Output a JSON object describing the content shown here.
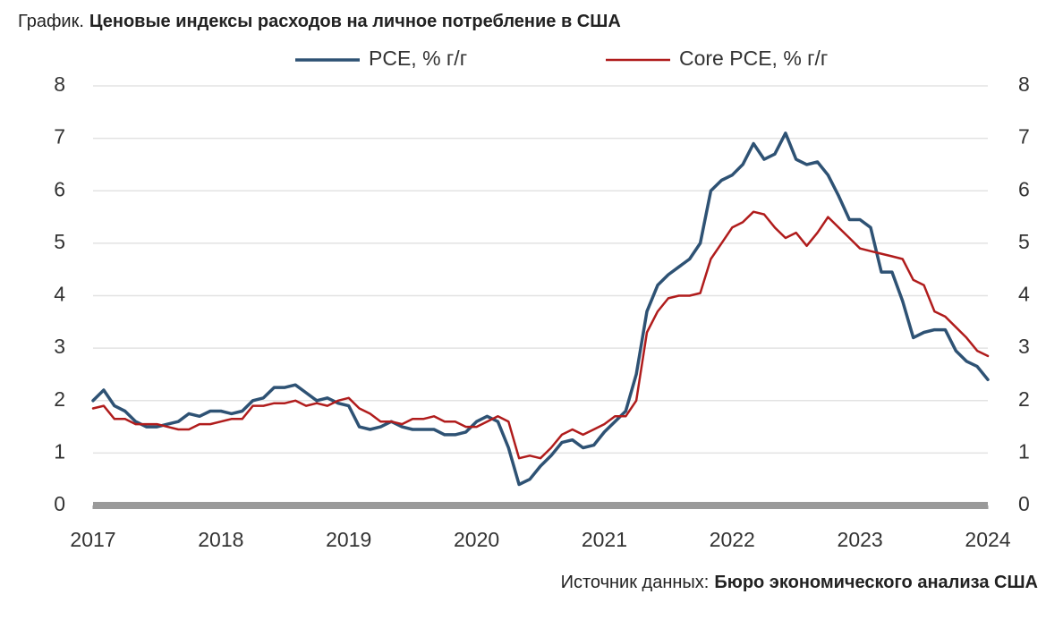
{
  "chart_data": {
    "type": "line",
    "title_prefix": "График.",
    "title": "Ценовые индексы расходов на личное потребление в США",
    "source_prefix": "Источник данных:",
    "source": "Бюро экономического анализа США",
    "xlim": [
      2017,
      2024
    ],
    "xticks": [
      2017,
      2018,
      2019,
      2020,
      2021,
      2022,
      2023,
      2024
    ],
    "ylim": [
      0,
      8
    ],
    "yticks": [
      0,
      1,
      2,
      3,
      4,
      5,
      6,
      7,
      8
    ],
    "y2lim": [
      0,
      8
    ],
    "y2ticks": [
      0,
      1,
      2,
      3,
      4,
      5,
      6,
      7,
      8
    ],
    "grid": true,
    "legend": "top",
    "x": [
      2017,
      2017.083,
      2017.167,
      2017.25,
      2017.333,
      2017.417,
      2017.5,
      2017.583,
      2017.667,
      2017.75,
      2017.833,
      2017.917,
      2018,
      2018.083,
      2018.167,
      2018.25,
      2018.333,
      2018.417,
      2018.5,
      2018.583,
      2018.667,
      2018.75,
      2018.833,
      2018.917,
      2019,
      2019.083,
      2019.167,
      2019.25,
      2019.333,
      2019.417,
      2019.5,
      2019.583,
      2019.667,
      2019.75,
      2019.833,
      2019.917,
      2020,
      2020.083,
      2020.167,
      2020.25,
      2020.333,
      2020.417,
      2020.5,
      2020.583,
      2020.667,
      2020.75,
      2020.833,
      2020.917,
      2021,
      2021.083,
      2021.167,
      2021.25,
      2021.333,
      2021.417,
      2021.5,
      2021.583,
      2021.667,
      2021.75,
      2021.833,
      2021.917,
      2022,
      2022.083,
      2022.167,
      2022.25,
      2022.333,
      2022.417,
      2022.5,
      2022.583,
      2022.667,
      2022.75,
      2022.833,
      2022.917,
      2023,
      2023.083,
      2023.167,
      2023.25,
      2023.333,
      2023.417,
      2023.5,
      2023.583,
      2023.667,
      2023.75,
      2023.833,
      2023.917,
      2024
    ],
    "series": [
      {
        "name": "PCE, % г/г",
        "color": "#2e5274",
        "values": [
          2.0,
          2.2,
          1.9,
          1.8,
          1.6,
          1.5,
          1.5,
          1.55,
          1.6,
          1.75,
          1.7,
          1.8,
          1.8,
          1.75,
          1.8,
          2.0,
          2.05,
          2.25,
          2.25,
          2.3,
          2.15,
          2.0,
          2.05,
          1.95,
          1.9,
          1.5,
          1.45,
          1.5,
          1.6,
          1.5,
          1.45,
          1.45,
          1.45,
          1.35,
          1.35,
          1.4,
          1.6,
          1.7,
          1.6,
          1.1,
          0.4,
          0.5,
          0.75,
          0.95,
          1.2,
          1.25,
          1.1,
          1.15,
          1.4,
          1.6,
          1.8,
          2.5,
          3.7,
          4.2,
          4.4,
          4.55,
          4.7,
          5.0,
          6.0,
          6.2,
          6.3,
          6.5,
          6.9,
          6.6,
          6.7,
          7.1,
          6.6,
          6.5,
          6.55,
          6.3,
          5.9,
          5.45,
          5.45,
          5.3,
          4.45,
          4.45,
          3.9,
          3.2,
          3.3,
          3.35,
          3.35,
          2.95,
          2.75,
          2.65,
          2.4
        ]
      },
      {
        "name": "Core PCE, % г/г",
        "color": "#b01c1c",
        "values": [
          1.85,
          1.9,
          1.65,
          1.65,
          1.55,
          1.55,
          1.55,
          1.5,
          1.45,
          1.45,
          1.55,
          1.55,
          1.6,
          1.65,
          1.65,
          1.9,
          1.9,
          1.95,
          1.95,
          2.0,
          1.9,
          1.95,
          1.9,
          2.0,
          2.05,
          1.85,
          1.75,
          1.6,
          1.6,
          1.55,
          1.65,
          1.65,
          1.7,
          1.6,
          1.6,
          1.5,
          1.5,
          1.6,
          1.7,
          1.6,
          0.9,
          0.95,
          0.9,
          1.1,
          1.35,
          1.45,
          1.35,
          1.45,
          1.55,
          1.7,
          1.7,
          2.0,
          3.3,
          3.7,
          3.95,
          4.0,
          4.0,
          4.05,
          4.7,
          5.0,
          5.3,
          5.4,
          5.6,
          5.55,
          5.3,
          5.1,
          5.2,
          4.95,
          5.2,
          5.5,
          5.3,
          5.1,
          4.9,
          4.85,
          4.8,
          4.75,
          4.7,
          4.3,
          4.2,
          3.7,
          3.6,
          3.4,
          3.2,
          2.95,
          2.85
        ]
      }
    ]
  }
}
